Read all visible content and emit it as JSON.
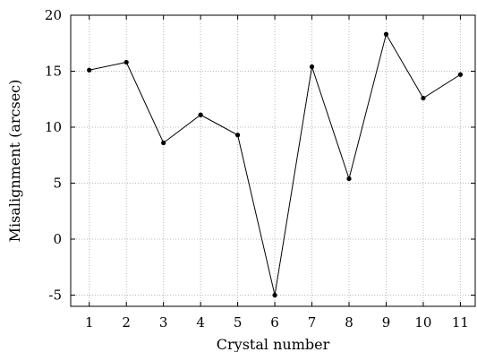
{
  "chart_data": {
    "type": "line",
    "xlabel": "Crystal number",
    "ylabel": "Misalignment (arcsec)",
    "x": [
      1,
      2,
      3,
      4,
      5,
      6,
      7,
      8,
      9,
      10,
      11
    ],
    "xticks": [
      "1",
      "2",
      "3",
      "4",
      "5",
      "6",
      "7",
      "8",
      "9",
      "10",
      "11"
    ],
    "yticks": [
      "-5",
      "0",
      "5",
      "10",
      "15",
      "20"
    ],
    "xlim": [
      0.5,
      11.4
    ],
    "ylim": [
      -6,
      20
    ],
    "grid": true,
    "series": [
      {
        "values": [
          15.1,
          15.8,
          8.6,
          11.1,
          9.3,
          -5.0,
          15.4,
          5.4,
          18.3,
          12.6,
          14.7
        ]
      }
    ],
    "colors": {
      "line": "#000000",
      "grid": "#b8b8b8"
    }
  }
}
